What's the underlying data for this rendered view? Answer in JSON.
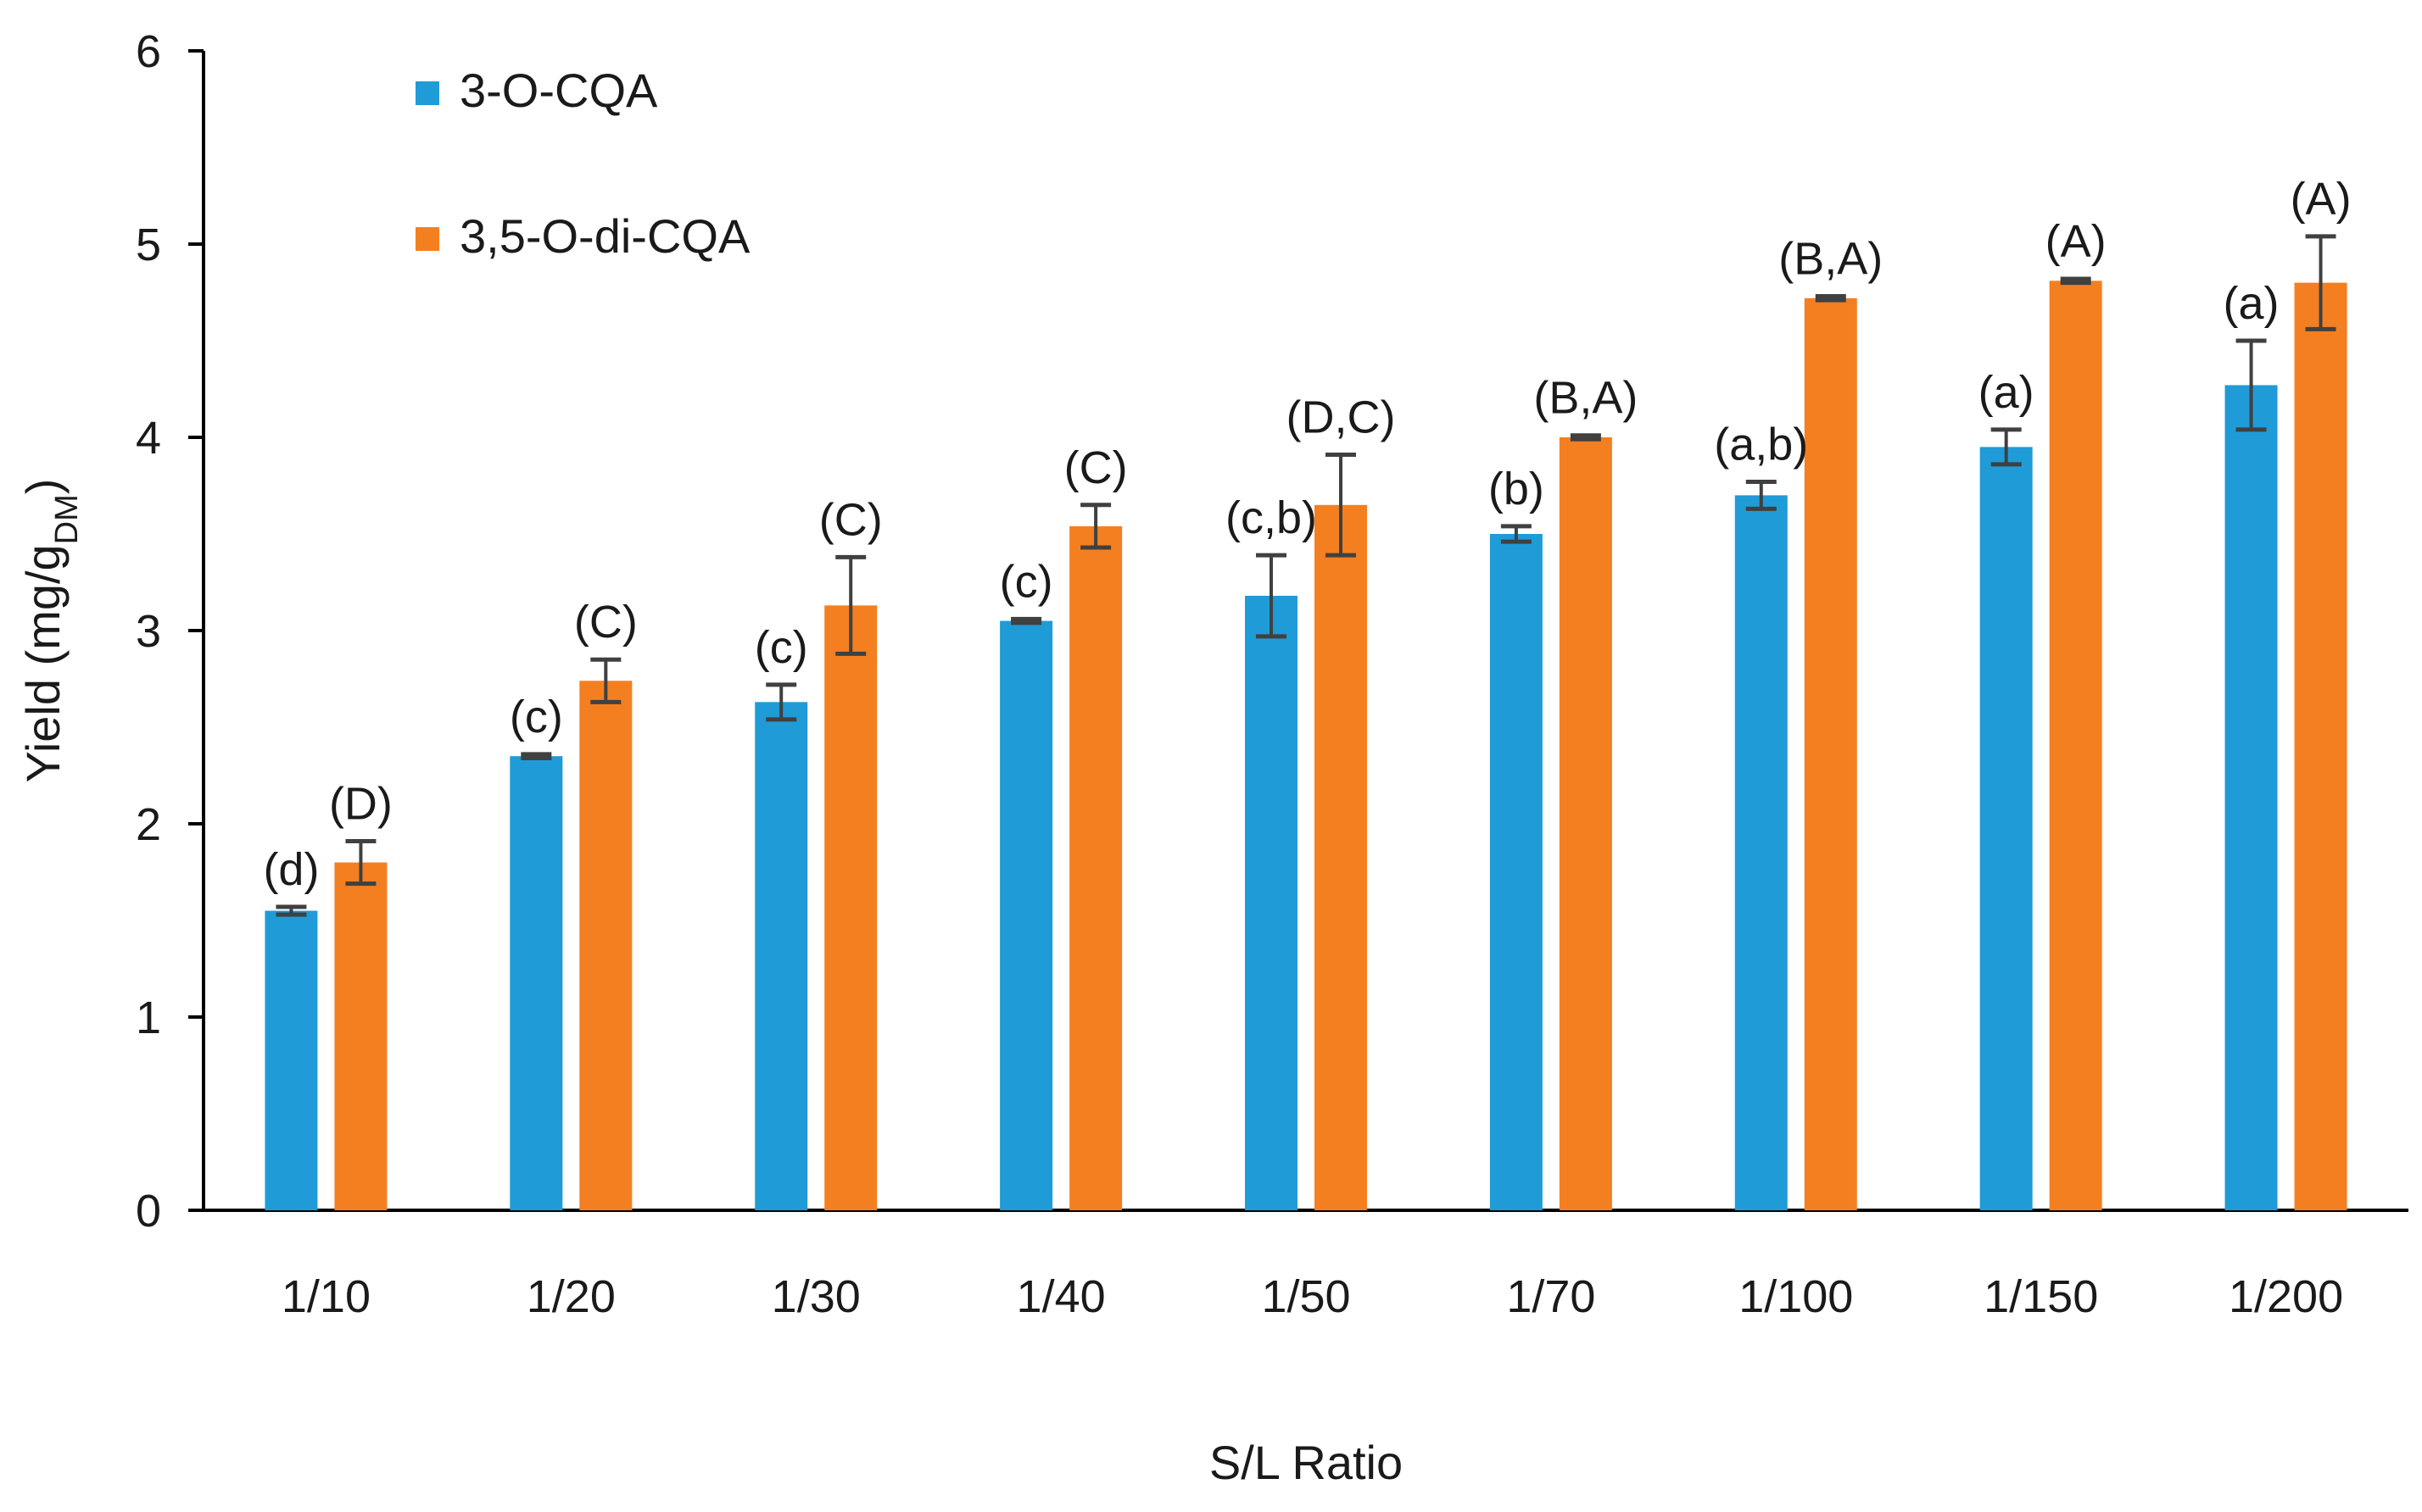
{
  "chart_data": {
    "type": "bar",
    "title": "",
    "xlabel": "S/L Ratio",
    "ylabel": "Yield (mg/g",
    "ylabel_subscript": "DM",
    "ylabel_close": ")",
    "ylim": [
      0,
      6
    ],
    "yticks": [
      "0",
      "1",
      "2",
      "3",
      "4",
      "5",
      "6"
    ],
    "categories": [
      "1/10",
      "1/20",
      "1/30",
      "1/40",
      "1/50",
      "1/70",
      "1/100",
      "1/150",
      "1/200"
    ],
    "legend_position": "top-left",
    "series": [
      {
        "name": "3-O-CQA",
        "color": "#1f9bd7",
        "values": [
          1.55,
          2.35,
          2.63,
          3.05,
          3.18,
          3.5,
          3.7,
          3.95,
          4.27
        ],
        "errors": [
          0.02,
          0.01,
          0.09,
          0.01,
          0.21,
          0.04,
          0.07,
          0.09,
          0.23
        ],
        "labels": [
          "(d)",
          "(c)",
          "(c)",
          "(c)",
          "(c,b)",
          "(b)",
          "(a,b)",
          "(a)",
          "(a)"
        ]
      },
      {
        "name": "3,5-O-di-CQA",
        "color": "#f47f20",
        "values": [
          1.8,
          2.74,
          3.13,
          3.54,
          3.65,
          4.0,
          4.72,
          4.81,
          4.8
        ],
        "errors": [
          0.11,
          0.11,
          0.25,
          0.11,
          0.26,
          0.01,
          0.01,
          0.01,
          0.24
        ],
        "labels": [
          "(D)",
          "(C)",
          "(C)",
          "(C)",
          "(D,C)",
          "(B,A)",
          "(B,A)",
          "(A)",
          "(A)"
        ]
      }
    ]
  }
}
